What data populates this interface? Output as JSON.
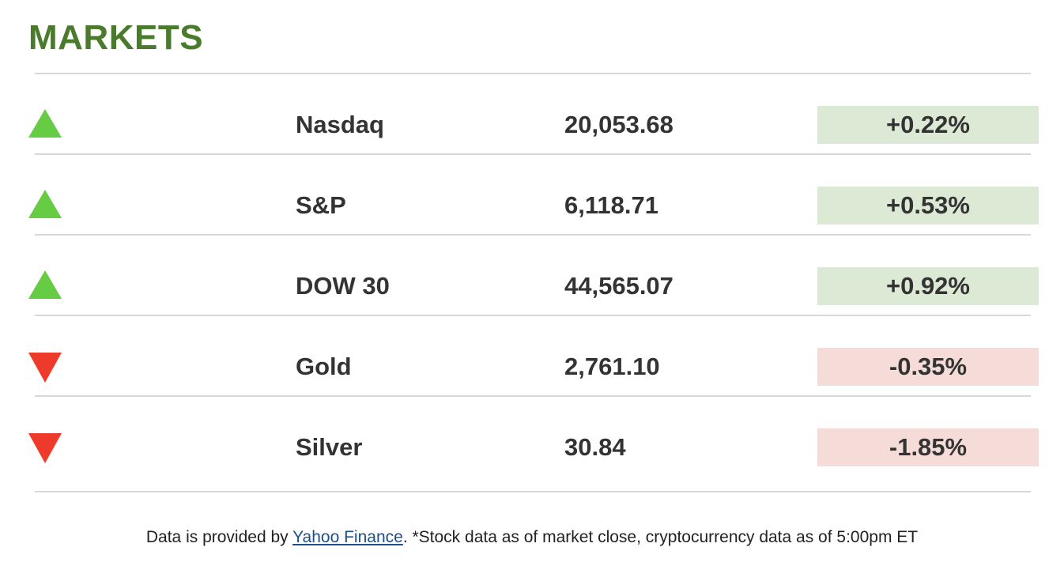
{
  "header": {
    "title": "MARKETS"
  },
  "colors": {
    "title": "#4a7a2c",
    "up_arrow": "#66cc44",
    "down_arrow": "#ee3a2a",
    "up_badge_bg": "#dce9d5",
    "down_badge_bg": "#f5dcd8",
    "link": "#1f4e8c"
  },
  "markets": [
    {
      "direction": "up",
      "icon": "triangle-up-icon",
      "name": "Nasdaq",
      "value": "20,053.68",
      "change": "+0.22%"
    },
    {
      "direction": "up",
      "icon": "triangle-up-icon",
      "name": "S&P",
      "value": "6,118.71",
      "change": "+0.53%"
    },
    {
      "direction": "up",
      "icon": "triangle-up-icon",
      "name": "DOW 30",
      "value": "44,565.07",
      "change": "+0.92%"
    },
    {
      "direction": "down",
      "icon": "triangle-down-icon",
      "name": "Gold",
      "value": "2,761.10",
      "change": "-0.35%"
    },
    {
      "direction": "down",
      "icon": "triangle-down-icon",
      "name": "Silver",
      "value": "30.84",
      "change": "-1.85%"
    }
  ],
  "footer": {
    "prefix": "Data is provided by ",
    "link_text": "Yahoo Finance",
    "suffix": ". *Stock data as of market close, cryptocurrency data as of 5:00pm ET"
  }
}
